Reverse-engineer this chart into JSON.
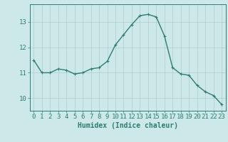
{
  "x": [
    0,
    1,
    2,
    3,
    4,
    5,
    6,
    7,
    8,
    9,
    10,
    11,
    12,
    13,
    14,
    15,
    16,
    17,
    18,
    19,
    20,
    21,
    22,
    23
  ],
  "y": [
    11.5,
    11.0,
    11.0,
    11.15,
    11.1,
    10.95,
    11.0,
    11.15,
    11.2,
    11.45,
    12.1,
    12.5,
    12.9,
    13.25,
    13.3,
    13.2,
    12.45,
    11.2,
    10.95,
    10.9,
    10.5,
    10.25,
    10.1,
    9.75
  ],
  "line_color": "#2e7d6e",
  "marker": "+",
  "markersize": 3,
  "linewidth": 1.0,
  "bg_color": "#cde8e8",
  "grid_color": "#b0cccc",
  "tick_color": "#2e7d6e",
  "xlabel": "Humidex (Indice chaleur)",
  "xlabel_fontsize": 7,
  "xlabel_color": "#2e7d6e",
  "yticks": [
    10,
    11,
    12,
    13
  ],
  "xticks": [
    0,
    1,
    2,
    3,
    4,
    5,
    6,
    7,
    8,
    9,
    10,
    11,
    12,
    13,
    14,
    15,
    16,
    17,
    18,
    19,
    20,
    21,
    22,
    23
  ],
  "ylim": [
    9.5,
    13.7
  ],
  "xlim": [
    -0.5,
    23.5
  ],
  "tick_fontsize": 6.5
}
